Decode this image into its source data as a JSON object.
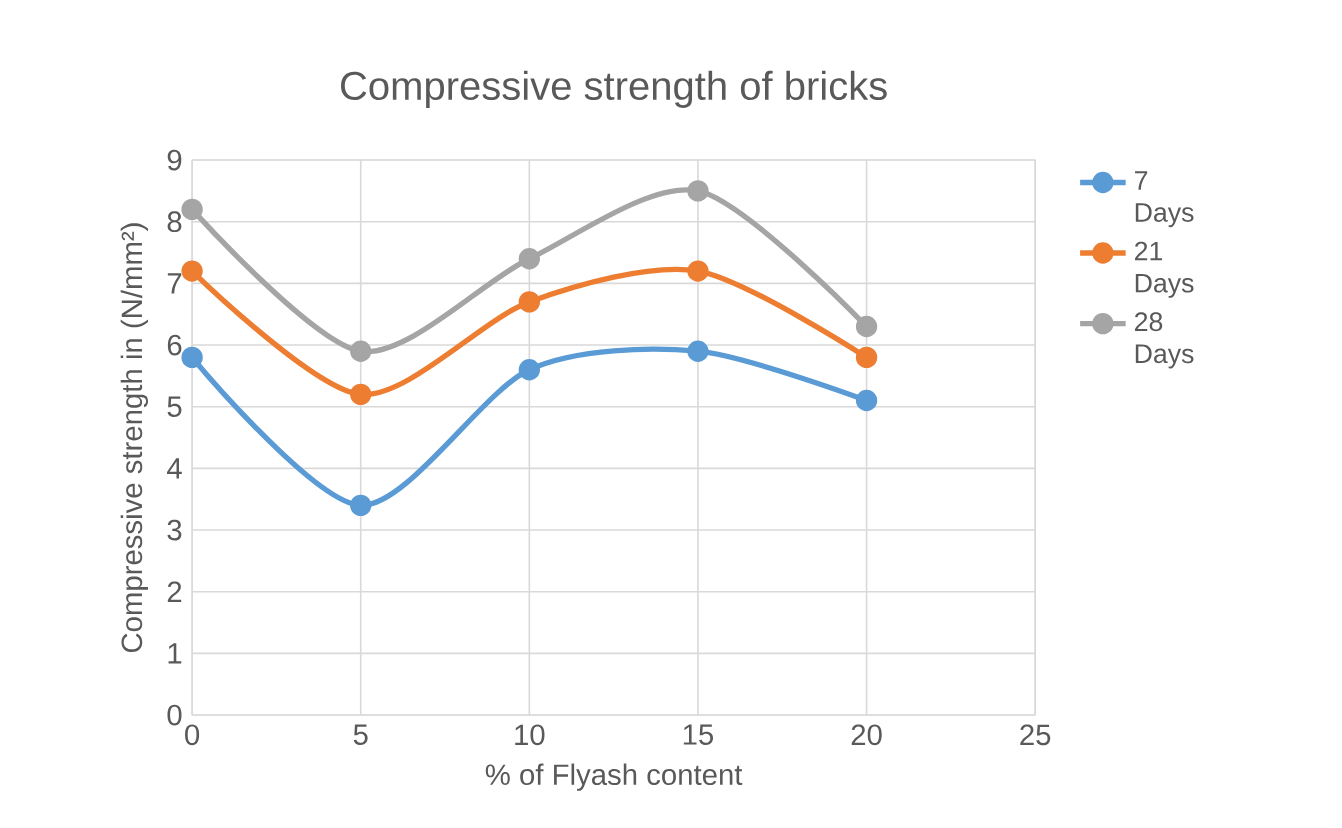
{
  "chart_data": {
    "type": "line",
    "title": "Compressive strength of bricks",
    "xlabel": "% of Flyash content",
    "ylabel": "Compressive strength in (N/mm²)",
    "x": [
      0,
      5,
      10,
      15,
      20
    ],
    "series": [
      {
        "name": "7 Days",
        "color": "#5b9bd5",
        "values": [
          5.8,
          3.4,
          5.6,
          5.9,
          5.1
        ]
      },
      {
        "name": "21 Days",
        "color": "#ed7d31",
        "values": [
          7.2,
          5.2,
          6.7,
          7.2,
          5.8
        ]
      },
      {
        "name": "28 Days",
        "color": "#a5a5a5",
        "values": [
          8.2,
          5.9,
          7.4,
          8.5,
          6.3
        ]
      }
    ],
    "xlim": [
      0,
      25
    ],
    "xticks": [
      0,
      5,
      10,
      15,
      20,
      25
    ],
    "ylim": [
      0,
      9
    ],
    "yticks": [
      0,
      1,
      2,
      3,
      4,
      5,
      6,
      7,
      8,
      9
    ],
    "grid": true,
    "legend": "right",
    "marker": "circle",
    "line_style": "solid"
  }
}
